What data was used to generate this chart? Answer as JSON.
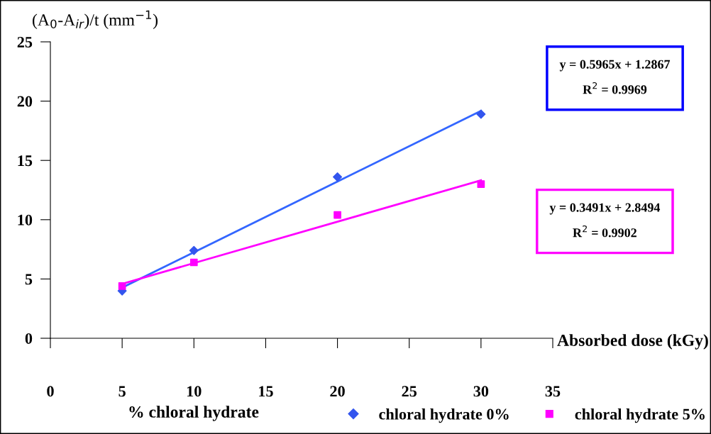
{
  "chart_data": {
    "type": "scatter",
    "ylabel": "(A$_{0}$-A$_{ir}$)/t (mm$^{−1}$)",
    "xlabel": "Absorbed dose (kGy)",
    "legend_title": "% chloral hydrate",
    "x": [
      5,
      10,
      20,
      30
    ],
    "series": [
      {
        "name": "chloral hydrate 0%",
        "color": "#3355ee",
        "marker": "diamond",
        "values": [
          4.0,
          7.4,
          13.6,
          18.9
        ]
      },
      {
        "name": "chloral hydrate 5%",
        "color": "#ff00ff",
        "marker": "square",
        "values": [
          4.4,
          6.4,
          10.4,
          13.0
        ]
      },
      {
        "type": "line",
        "color": "#3366ff",
        "values": [
          4.27,
          7.25,
          13.22,
          19.18
        ]
      },
      {
        "type": "line",
        "color": "#ff00ff",
        "values": [
          4.59,
          6.34,
          9.83,
          13.32
        ]
      }
    ],
    "annotations": [
      "y = 0.5965x + 1.2867\n\nR$^{2}$ = 0.9969",
      "y = 0.3491x + 2.8494\n\nR$^{2}$ = 0.9902"
    ],
    "xlim": [
      0,
      35
    ],
    "xticks": [
      0,
      5,
      10,
      15,
      20,
      25,
      30,
      35
    ],
    "ylim": [
      0,
      25
    ],
    "yticks": [
      0,
      5,
      10,
      15,
      20,
      25
    ],
    "grid": false,
    "legend": "bottom"
  }
}
